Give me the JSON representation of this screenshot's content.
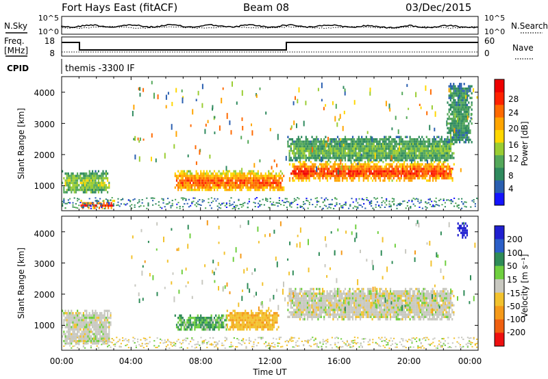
{
  "header": {
    "station": "Fort Hays East (fitACF)",
    "beam": "Beam 08",
    "date": "03/Dec/2015"
  },
  "top_panels": {
    "nsky_label": "N.Sky",
    "nsearch_label": "N.Search",
    "freq_label_1": "Freq.",
    "freq_label_2": "[MHz]",
    "nave_label": "Nave",
    "cpid_label": "CPID",
    "cpid_text": "themis -3300 IF",
    "noise_ticks": [
      "10^5",
      "10^0"
    ],
    "freq_ticks": [
      "18",
      "8"
    ],
    "nave_ticks": [
      "60",
      "0"
    ]
  },
  "axes": {
    "range_label": "Slant Range [km]",
    "time_label": "Time UT",
    "range_ticks": [
      "1000",
      "2000",
      "3000",
      "4000"
    ],
    "time_ticks": [
      "00:00",
      "04:00",
      "08:00",
      "12:00",
      "16:00",
      "20:00",
      "00:00"
    ]
  },
  "power_colorbar": {
    "label": "Power [dB]",
    "ticks": [
      "4",
      "8",
      "12",
      "16",
      "20",
      "24",
      "28"
    ],
    "colors": [
      "#1414ff",
      "#2a5fb0",
      "#2f8a5e",
      "#54a85a",
      "#9acd32",
      "#ffd700",
      "#ffa500",
      "#ff6a00",
      "#ff2200",
      "#ee0000"
    ]
  },
  "velocity_colorbar": {
    "label": "Velocity [m s⁻¹]",
    "ticks": [
      "200",
      "100",
      "50",
      "15",
      "-15",
      "-50",
      "-100",
      "-200"
    ],
    "colors": [
      "#1f1fd0",
      "#2b5fc8",
      "#2e8b57",
      "#6fcf3f",
      "#c8c8c0",
      "#f2c22e",
      "#f59a1a",
      "#f06010",
      "#ee1010"
    ]
  },
  "chart_data": [
    {
      "type": "heatmap",
      "title": "Power",
      "x_unit": "hours UT",
      "xlim": [
        0,
        24
      ],
      "ylim": [
        200,
        4500
      ],
      "colorbar_range": [
        0,
        30
      ],
      "regions": [
        {
          "t0": 0.0,
          "t1": 2.7,
          "r0": 800,
          "r1": 1500,
          "level": 14
        },
        {
          "t0": 1.0,
          "t1": 3.0,
          "r0": 300,
          "r1": 550,
          "level": 27
        },
        {
          "t0": 6.5,
          "t1": 12.8,
          "r0": 850,
          "r1": 1500,
          "level": 24
        },
        {
          "t0": 13.1,
          "t1": 22.6,
          "r0": 1200,
          "r1": 1800,
          "level": 26
        },
        {
          "t0": 13.0,
          "t1": 22.6,
          "r0": 1800,
          "r1": 2600,
          "level": 12
        },
        {
          "t0": 22.2,
          "t1": 23.6,
          "r0": 2400,
          "r1": 4300,
          "level": 10
        }
      ]
    },
    {
      "type": "heatmap",
      "title": "Velocity",
      "x_unit": "hours UT",
      "xlim": [
        0,
        24
      ],
      "ylim": [
        200,
        4500
      ],
      "colorbar_range": [
        -250,
        250
      ],
      "regions": [
        {
          "t0": 0.0,
          "t1": 2.8,
          "r0": 400,
          "r1": 1500,
          "velocity": 0
        },
        {
          "t0": 6.5,
          "t1": 9.5,
          "r0": 850,
          "r1": 1350,
          "velocity": 30
        },
        {
          "t0": 9.5,
          "t1": 12.5,
          "r0": 850,
          "r1": 1500,
          "velocity": -40
        },
        {
          "t0": 13.0,
          "t1": 22.6,
          "r0": 1200,
          "r1": 2200,
          "velocity": 0
        },
        {
          "t0": 22.8,
          "t1": 23.4,
          "r0": 3800,
          "r1": 4300,
          "velocity": 220
        }
      ]
    }
  ]
}
